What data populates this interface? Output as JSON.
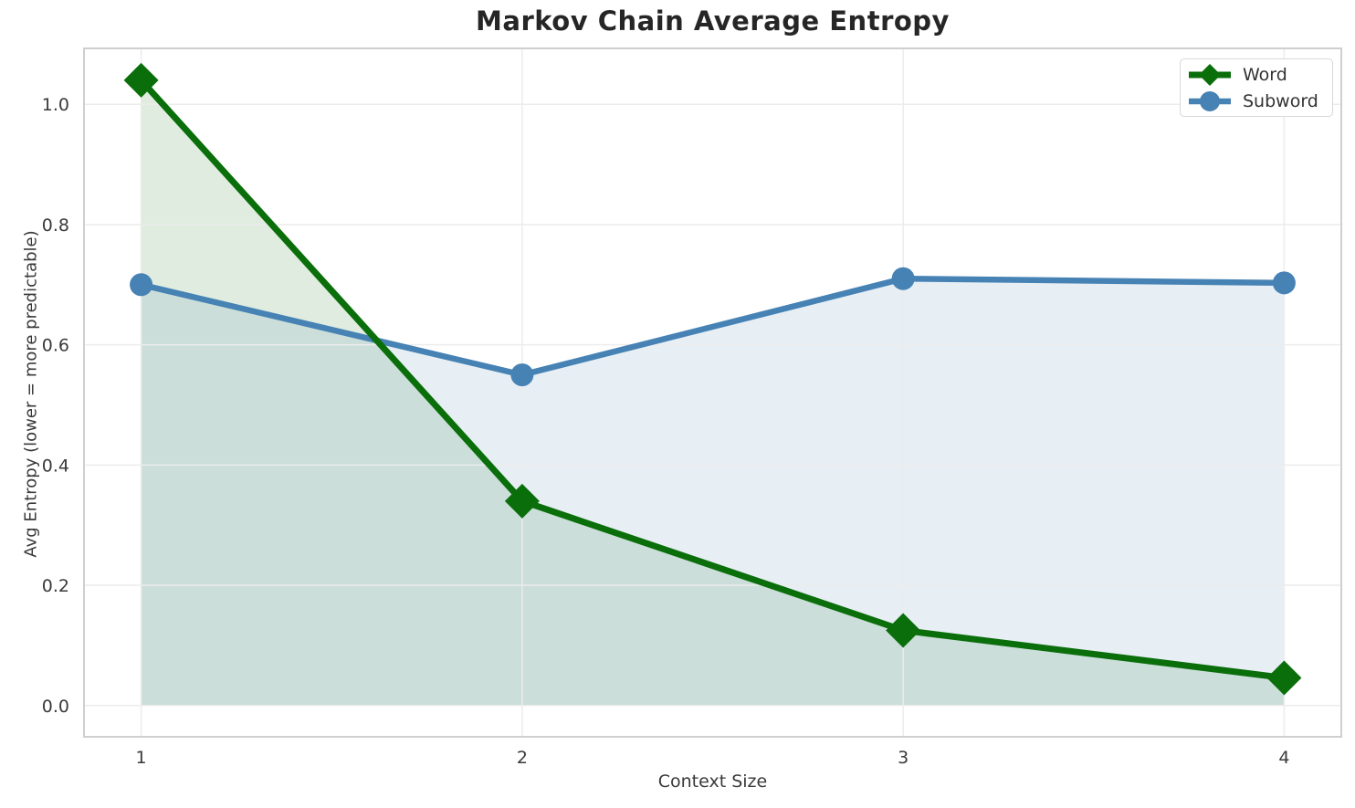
{
  "chart_data": {
    "type": "line",
    "title": "Markov Chain Average Entropy",
    "xlabel": "Context Size",
    "ylabel": "Avg Entropy (lower = more predictable)",
    "x": [
      1,
      2,
      3,
      4
    ],
    "xtick_labels": [
      "1",
      "2",
      "3",
      "4"
    ],
    "yticks": [
      0.0,
      0.2,
      0.4,
      0.6,
      0.8,
      1.0
    ],
    "ytick_labels": [
      "0.0",
      "0.2",
      "0.4",
      "0.6",
      "0.8",
      "1.0"
    ],
    "xlim": [
      0.85,
      4.15
    ],
    "ylim": [
      -0.052,
      1.093
    ],
    "grid": true,
    "fill_baseline": 0.0,
    "legend_position": "upper right",
    "series": [
      {
        "name": "Word",
        "marker": "diamond",
        "color": "#0a6e0a",
        "fill_color": "rgba(10,110,10,0.13)",
        "values": [
          1.04,
          0.34,
          0.125,
          0.046
        ]
      },
      {
        "name": "Subword",
        "marker": "circle",
        "color": "#4682b4",
        "fill_color": "rgba(70,130,180,0.13)",
        "values": [
          0.7,
          0.55,
          0.71,
          0.703
        ]
      }
    ],
    "colors": {
      "grid": "#ececec",
      "spine": "#cfcfcf",
      "tick_text": "#3a3a3a",
      "title_text": "#262626",
      "background": "#ffffff"
    }
  }
}
